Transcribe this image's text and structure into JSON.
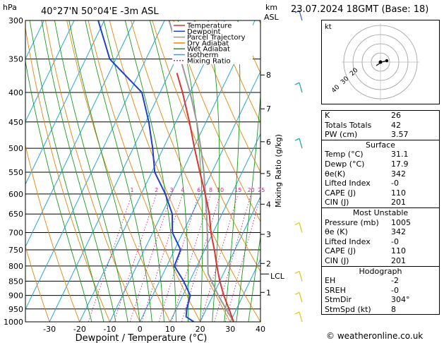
{
  "header": {
    "hpa_label": "hPa",
    "location": "40°27'N 50°04'E -3m ASL",
    "km_label": "km",
    "asl_label": "ASL",
    "datetime": "23.07.2024 18GMT (Base: 18)"
  },
  "footer": {
    "xlabel": "Dewpoint / Temperature (°C)",
    "copyright": "© weatheronline.co.uk"
  },
  "legend": [
    {
      "label": "Temperature",
      "color": "#dd3333",
      "style": "solid"
    },
    {
      "label": "Dewpoint",
      "color": "#1f3fd0",
      "style": "solid"
    },
    {
      "label": "Parcel Trajectory",
      "color": "#999999",
      "style": "solid"
    },
    {
      "label": "Dry Adiabat",
      "color": "#e8840c",
      "style": "solid"
    },
    {
      "label": "Wet Adiabat",
      "color": "#1b9a1b",
      "style": "solid"
    },
    {
      "label": "Isotherm",
      "color": "#24a6d8",
      "style": "solid"
    },
    {
      "label": "Mixing Ratio",
      "color": "#d0258f",
      "style": "dotted"
    }
  ],
  "mixing_ratio_axis_label": "Mixing Ratio (g/kg)",
  "lcl_label": "LCL",
  "hodograph": {
    "label": "kt",
    "rings": [
      "40",
      "30",
      "20"
    ]
  },
  "chart_data": {
    "type": "skew-t",
    "pressure_levels": [
      300,
      350,
      400,
      450,
      500,
      550,
      600,
      650,
      700,
      750,
      800,
      850,
      900,
      950,
      1000
    ],
    "x_ticks": [
      -30,
      -20,
      -10,
      0,
      10,
      20,
      30,
      40
    ],
    "xlim": [
      -38,
      40
    ],
    "ylim": [
      1000,
      300
    ],
    "skew_deg_per_ln_p": 40,
    "km_ticks": [
      {
        "km": "1",
        "p": 889
      },
      {
        "km": "2",
        "p": 792
      },
      {
        "km": "3",
        "p": 705
      },
      {
        "km": "4",
        "p": 625
      },
      {
        "km": "5",
        "p": 553
      },
      {
        "km": "6",
        "p": 487
      },
      {
        "km": "7",
        "p": 427
      },
      {
        "km": "8",
        "p": 373
      }
    ],
    "lcl_pressure": 826,
    "mixing_ratios": [
      {
        "label": "1",
        "value": 1
      },
      {
        "label": "2",
        "value": 2
      },
      {
        "label": "3",
        "value": 3
      },
      {
        "label": "4",
        "value": 4
      },
      {
        "label": "6",
        "value": 6
      },
      {
        "label": "8",
        "value": 8
      },
      {
        "label": "10",
        "value": 10
      },
      {
        "label": "15",
        "value": 15
      },
      {
        "label": "20",
        "value": 20
      },
      {
        "label": "25",
        "value": 25
      }
    ],
    "temperature": [
      {
        "p": 1000,
        "t": 31.1
      },
      {
        "p": 950,
        "t": 27.5
      },
      {
        "p": 900,
        "t": 23.6
      },
      {
        "p": 850,
        "t": 20.0
      },
      {
        "p": 800,
        "t": 16.6
      },
      {
        "p": 750,
        "t": 13.2
      },
      {
        "p": 700,
        "t": 9.3
      },
      {
        "p": 650,
        "t": 5.8
      },
      {
        "p": 600,
        "t": 1.2
      },
      {
        "p": 550,
        "t": -4.0
      },
      {
        "p": 500,
        "t": -9.6
      },
      {
        "p": 450,
        "t": -15.5
      },
      {
        "p": 400,
        "t": -22.5
      },
      {
        "p": 370,
        "t": -27.5
      }
    ],
    "dewpoint": [
      {
        "p": 1000,
        "t": 17.9
      },
      {
        "p": 980,
        "t": 14.5
      },
      {
        "p": 950,
        "t": 13.5
      },
      {
        "p": 900,
        "t": 12.5
      },
      {
        "p": 850,
        "t": 8.0
      },
      {
        "p": 800,
        "t": 2.5
      },
      {
        "p": 750,
        "t": 2.0
      },
      {
        "p": 700,
        "t": -3.5
      },
      {
        "p": 650,
        "t": -6.5
      },
      {
        "p": 600,
        "t": -12.0
      },
      {
        "p": 550,
        "t": -19.0
      },
      {
        "p": 500,
        "t": -23.5
      },
      {
        "p": 450,
        "t": -29.0
      },
      {
        "p": 400,
        "t": -36.0
      },
      {
        "p": 350,
        "t": -52.0
      },
      {
        "p": 300,
        "t": -62.0
      }
    ],
    "parcel": [
      {
        "p": 1000,
        "t": 31.1
      },
      {
        "p": 950,
        "t": 26.5
      },
      {
        "p": 900,
        "t": 21.8
      },
      {
        "p": 850,
        "t": 17.3
      },
      {
        "p": 826,
        "t": 15.0
      },
      {
        "p": 800,
        "t": 13.6
      },
      {
        "p": 750,
        "t": 11.0
      },
      {
        "p": 700,
        "t": 8.1
      },
      {
        "p": 650,
        "t": 4.9
      },
      {
        "p": 600,
        "t": 1.3
      },
      {
        "p": 550,
        "t": -2.7
      },
      {
        "p": 500,
        "t": -7.5
      },
      {
        "p": 450,
        "t": -13.1
      },
      {
        "p": 400,
        "t": -20.0
      },
      {
        "p": 350,
        "t": -28.5
      },
      {
        "p": 300,
        "t": -38.5
      }
    ],
    "wind_barbs": [
      {
        "p": 300,
        "color": "#3355dd"
      },
      {
        "p": 400,
        "color": "#1aa6a0"
      },
      {
        "p": 500,
        "color": "#1aa6a0"
      },
      {
        "p": 700,
        "color": "#e0c21a"
      },
      {
        "p": 850,
        "color": "#e0c21a"
      },
      {
        "p": 925,
        "color": "#e0c21a"
      },
      {
        "p": 1000,
        "color": "#e0c21a"
      }
    ]
  },
  "indices": [
    {
      "label": "K",
      "value": "26"
    },
    {
      "label": "Totals Totals",
      "value": "42"
    },
    {
      "label": "PW (cm)",
      "value": "3.57"
    }
  ],
  "surface": {
    "title": "Surface",
    "rows": [
      {
        "label": "Temp (°C)",
        "value": "31.1"
      },
      {
        "label": "Dewp (°C)",
        "value": "17.9"
      },
      {
        "label": "θe(K)",
        "value": "342"
      },
      {
        "label": "Lifted Index",
        "value": "-0"
      },
      {
        "label": "CAPE (J)",
        "value": "110"
      },
      {
        "label": "CIN (J)",
        "value": "201"
      }
    ]
  },
  "most_unstable": {
    "title": "Most Unstable",
    "rows": [
      {
        "label": "Pressure (mb)",
        "value": "1005"
      },
      {
        "label": "θe (K)",
        "value": "342"
      },
      {
        "label": "Lifted Index",
        "value": "-0"
      },
      {
        "label": "CAPE (J)",
        "value": "110"
      },
      {
        "label": "CIN (J)",
        "value": "201"
      }
    ]
  },
  "hodograph_table": {
    "title": "Hodograph",
    "rows": [
      {
        "label": "EH",
        "value": "-2"
      },
      {
        "label": "SREH",
        "value": "-0"
      },
      {
        "label": "StmDir",
        "value": "304°"
      },
      {
        "label": "StmSpd (kt)",
        "value": "8"
      }
    ]
  }
}
